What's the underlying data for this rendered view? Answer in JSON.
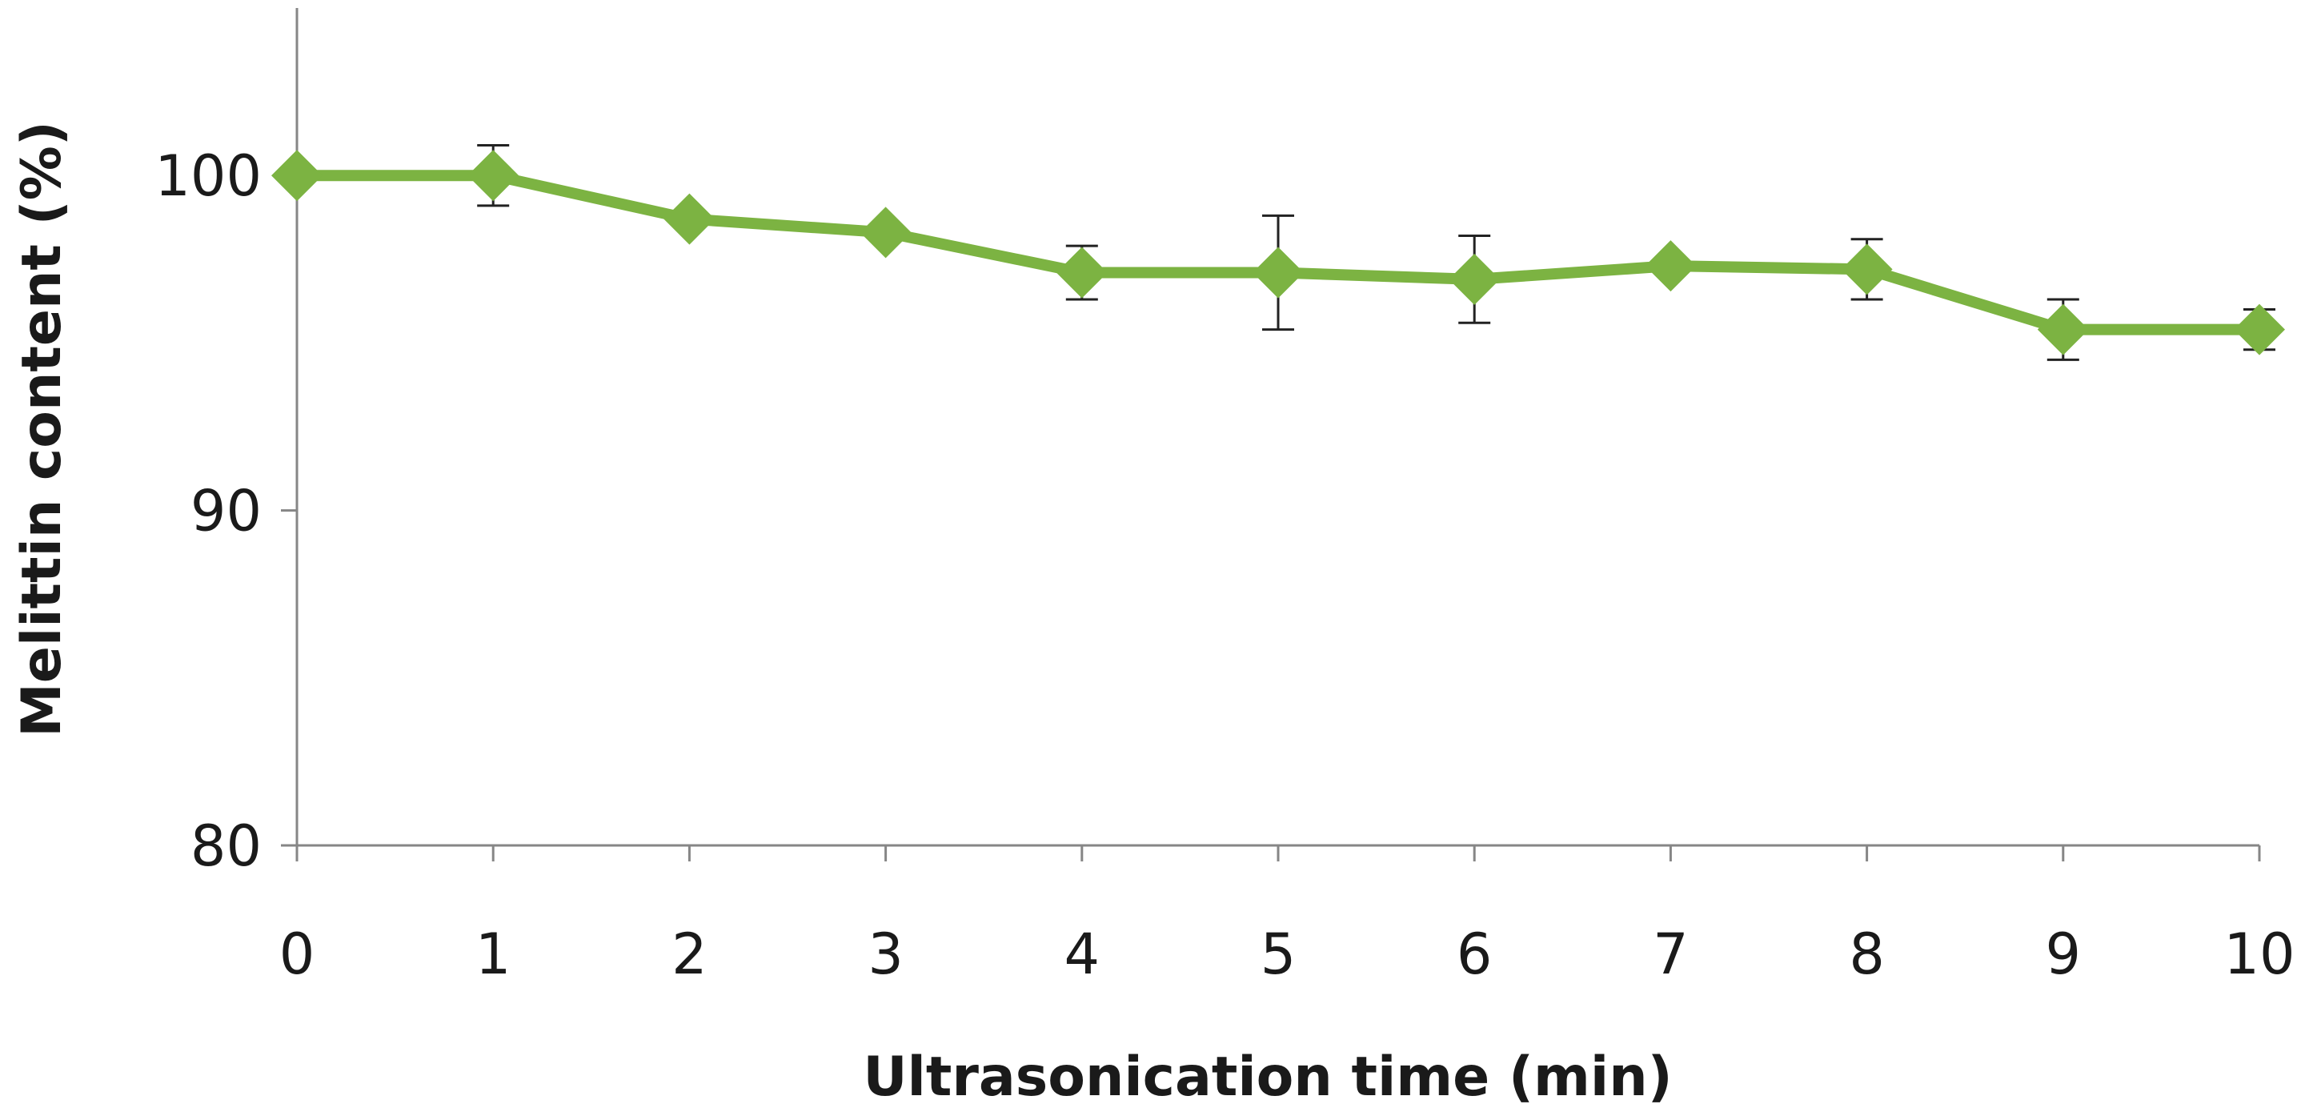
{
  "chart_data": {
    "type": "line",
    "title": "",
    "xlabel": "Ultrasonication time (min)",
    "ylabel": "Melittin content (%)",
    "x": [
      0,
      1,
      2,
      3,
      4,
      5,
      6,
      7,
      8,
      9,
      10
    ],
    "x_tick_labels": [
      "0",
      "1",
      "2",
      "3",
      "4",
      "5",
      "6",
      "7",
      "8",
      "9",
      "10"
    ],
    "y_ticks": [
      80,
      90,
      100
    ],
    "y_tick_labels": [
      "80",
      "90",
      "100"
    ],
    "xlim": [
      0,
      10
    ],
    "ylim": [
      80,
      105
    ],
    "grid": false,
    "legend": "none",
    "series": [
      {
        "color": "#7cb342",
        "marker": "diamond",
        "values": [
          100.0,
          100.0,
          98.7,
          98.3,
          97.1,
          97.1,
          96.9,
          97.3,
          97.2,
          95.4,
          95.4
        ],
        "error": [
          0,
          0.9,
          0,
          0,
          0.8,
          1.7,
          1.3,
          0,
          0.9,
          0.9,
          0.6
        ]
      }
    ],
    "axis_color": "#868686",
    "errorbar_color": "#222222"
  }
}
